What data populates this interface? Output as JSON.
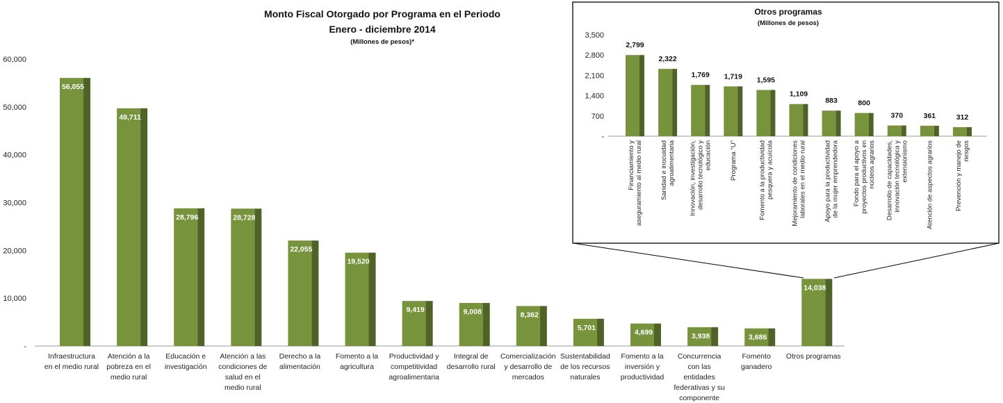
{
  "colors": {
    "bar_front": "#77933c",
    "bar_side": "#4f6228",
    "inset_border": "#000000"
  },
  "chart_data": [
    {
      "type": "bar",
      "title": "Monto Fiscal Otorgado por Programa en el Periodo",
      "title_line2": "Enero - diciembre 2014",
      "subtitle": "(Millones de pesos)*",
      "ylim": [
        0,
        60000
      ],
      "yticks": [
        "-",
        "10,000",
        "20,000",
        "30,000",
        "40,000",
        "50,000",
        "60,000"
      ],
      "grid": false,
      "categories": [
        [
          "Infraestructura",
          "en el medio rural"
        ],
        [
          "Atención a la",
          "pobreza en el",
          "medio rural"
        ],
        [
          "Educación e",
          "investigación"
        ],
        [
          "Atención a las",
          "condiciones de",
          "salud en el",
          "medio rural"
        ],
        [
          "Derecho a la",
          "alimentación"
        ],
        [
          "Fomento a la",
          "agricultura"
        ],
        [
          "Productividad y",
          "competitividad",
          "agroalimentaria"
        ],
        [
          "Integral de",
          "desarrollo rural"
        ],
        [
          "Comercialización",
          "y desarrollo de",
          "mercados"
        ],
        [
          "Sustentabilidad",
          "de los recursos",
          "naturales"
        ],
        [
          "Fomento a la",
          "inversión y",
          "productividad"
        ],
        [
          "Concurrencia",
          "con las",
          "entidades",
          "federativas y su",
          "componente"
        ],
        [
          "Fomento",
          "ganadero"
        ],
        [
          "Otros programas"
        ]
      ],
      "values": [
        56055,
        49711,
        28796,
        28728,
        22055,
        19520,
        9419,
        9008,
        8362,
        5701,
        4699,
        3938,
        3686,
        14038
      ],
      "labels": [
        "56,055",
        "49,711",
        "28,796",
        "28,728",
        "22,055",
        "19,520",
        "9,419",
        "9,008",
        "8,362",
        "5,701",
        "4,699",
        "3,938",
        "3,686",
        "14,038"
      ]
    },
    {
      "type": "bar",
      "title": "Otros programas",
      "subtitle": "(Millones de pesos)",
      "ylim": [
        0,
        3500
      ],
      "yticks": [
        "-",
        "700",
        "1,400",
        "2,100",
        "2,800",
        "3,500"
      ],
      "grid": false,
      "categories": [
        [
          "Financiamiento y",
          "aseguramiento al medio rural"
        ],
        [
          "Sanidad e inocuidad",
          "agroalimentaria"
        ],
        [
          "Innovación, investigación,",
          "desarrollo tecnológico y",
          "educación"
        ],
        [
          "Programa \"U\""
        ],
        [
          "Fomento a la productividad",
          "pesquera y acuícola"
        ],
        [
          "Mejoramiento de condiciones",
          "laborales en el medio rural"
        ],
        [
          "Apoyo para la productividad",
          "de la mujer emprendedora"
        ],
        [
          "Fondo para el apoyo a",
          "proyectos productivos en",
          "núcleos agrarios"
        ],
        [
          "Desarrollo de capacidades,",
          "innovación tecnológica y",
          "extensionismo"
        ],
        [
          "Atención de aspectos agrarios"
        ],
        [
          "Prevención y manejo de",
          "riesgos"
        ]
      ],
      "values": [
        2799,
        2322,
        1769,
        1719,
        1595,
        1109,
        883,
        800,
        370,
        361,
        312
      ],
      "labels": [
        "2,799",
        "2,322",
        "1,769",
        "1,719",
        "1,595",
        "1,109",
        "883",
        "800",
        "370",
        "361",
        "312"
      ]
    }
  ]
}
